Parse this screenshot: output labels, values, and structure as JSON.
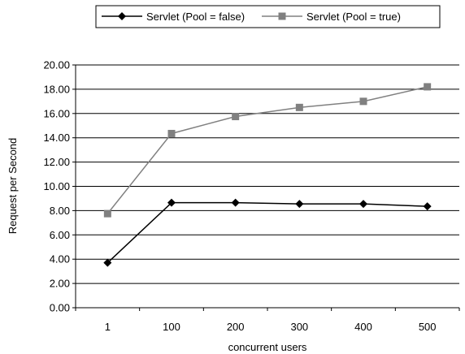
{
  "chart_data": {
    "type": "line",
    "categories": [
      "1",
      "100",
      "200",
      "300",
      "400",
      "500"
    ],
    "series": [
      {
        "name": "Servlet (Pool = false)",
        "values": [
          3.7,
          8.65,
          8.65,
          8.55,
          8.55,
          8.35
        ],
        "color": "#000000",
        "marker": "diamond"
      },
      {
        "name": "Servlet (Pool = true)",
        "values": [
          7.75,
          14.35,
          15.75,
          16.5,
          17.0,
          18.2
        ],
        "color": "#808080",
        "marker": "square"
      }
    ],
    "xlabel": "concurrent users",
    "ylabel": "Request per Second",
    "ylim": [
      0,
      20
    ],
    "yticks": [
      "0.00",
      "2.00",
      "4.00",
      "6.00",
      "8.00",
      "10.00",
      "12.00",
      "14.00",
      "16.00",
      "18.00",
      "20.00"
    ],
    "grid": "horizontal",
    "legend_position": "top"
  }
}
